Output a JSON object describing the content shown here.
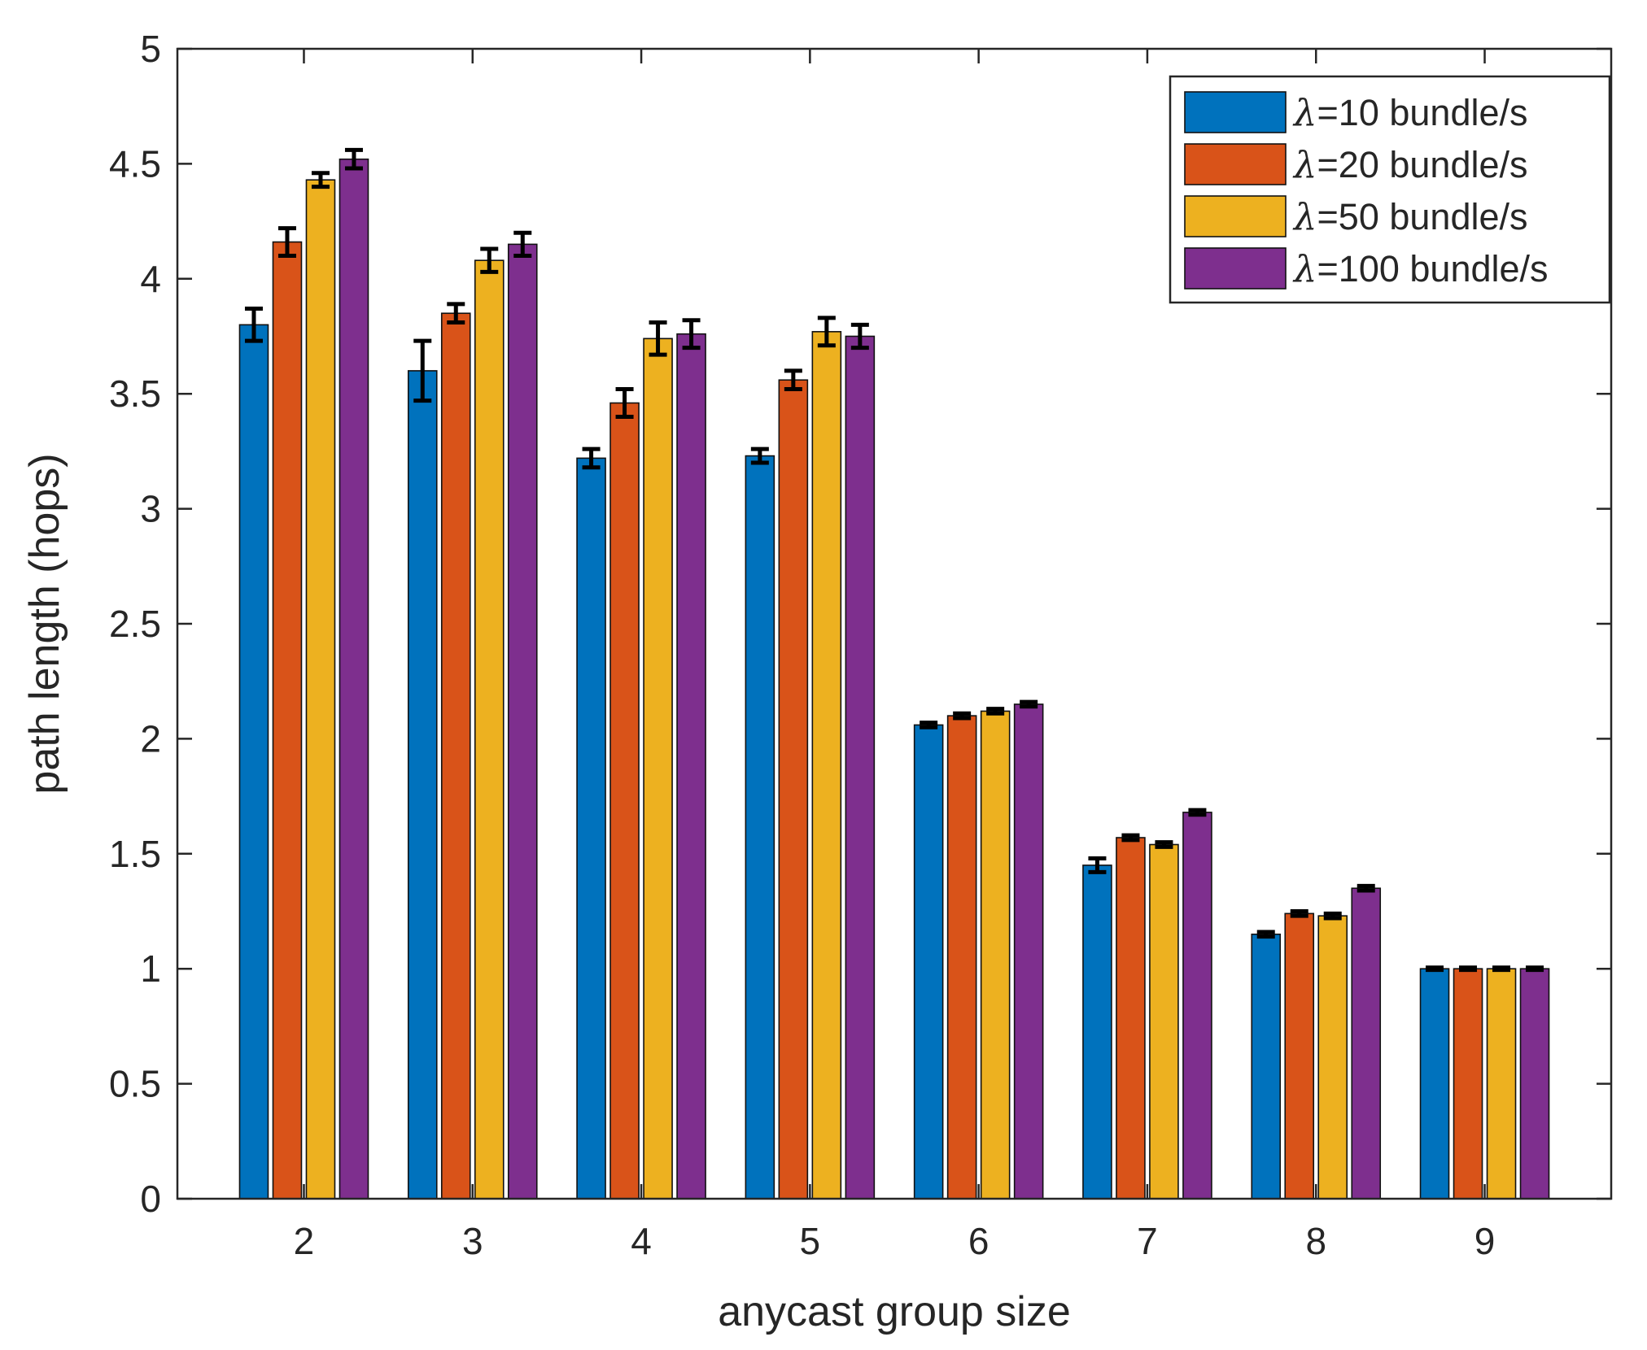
{
  "chart_data": {
    "type": "bar",
    "title": "",
    "xlabel": "anycast group size",
    "ylabel": "path length (hops)",
    "ylim": [
      0,
      5
    ],
    "yticks": [
      0,
      0.5,
      1,
      1.5,
      2,
      2.5,
      3,
      3.5,
      4,
      4.5,
      5
    ],
    "ytick_labels": [
      "0",
      "0.5",
      "1",
      "1.5",
      "2",
      "2.5",
      "3",
      "3.5",
      "4",
      "4.5",
      "5"
    ],
    "categories": [
      "2",
      "3",
      "4",
      "5",
      "6",
      "7",
      "8",
      "9"
    ],
    "legend_position": "top-right",
    "grid": false,
    "series": [
      {
        "name": "λ=10 bundle/s",
        "lambda": "λ",
        "label_rest": "=10 bundle/s",
        "color": "#0072BD",
        "values": [
          3.8,
          3.6,
          3.22,
          3.23,
          2.06,
          1.45,
          1.15,
          1.0
        ],
        "errors": [
          0.07,
          0.13,
          0.04,
          0.03,
          0.01,
          0.03,
          0.01,
          0.005
        ]
      },
      {
        "name": "λ=20 bundle/s",
        "lambda": "λ",
        "label_rest": "=20 bundle/s",
        "color": "#D95319",
        "values": [
          4.16,
          3.85,
          3.46,
          3.56,
          2.1,
          1.57,
          1.24,
          1.0
        ],
        "errors": [
          0.06,
          0.04,
          0.06,
          0.04,
          0.01,
          0.01,
          0.01,
          0.005
        ]
      },
      {
        "name": "λ=50 bundle/s",
        "lambda": "λ",
        "label_rest": "=50 bundle/s",
        "color": "#EDB120",
        "values": [
          4.43,
          4.08,
          3.74,
          3.77,
          2.12,
          1.54,
          1.23,
          1.0
        ],
        "errors": [
          0.03,
          0.05,
          0.07,
          0.06,
          0.01,
          0.01,
          0.01,
          0.005
        ]
      },
      {
        "name": "λ=100 bundle/s",
        "lambda": "λ",
        "label_rest": "=100 bundle/s",
        "color": "#7E2F8E",
        "values": [
          4.52,
          4.15,
          3.76,
          3.75,
          2.15,
          1.68,
          1.35,
          1.0
        ],
        "errors": [
          0.04,
          0.05,
          0.06,
          0.05,
          0.01,
          0.01,
          0.01,
          0.005
        ]
      }
    ]
  }
}
